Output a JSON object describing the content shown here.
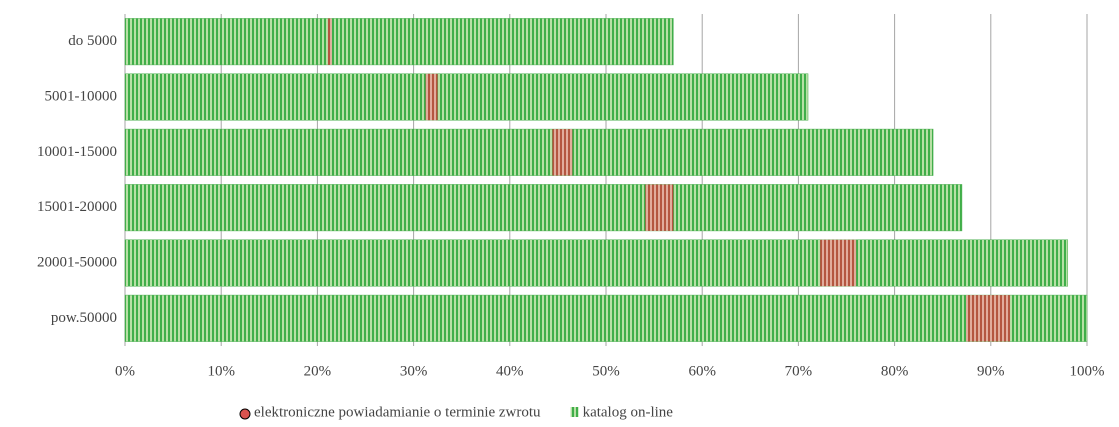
{
  "chart_data": {
    "type": "bar",
    "orientation": "horizontal",
    "categories": [
      "do 5000",
      "5001-10000",
      "10001-15000",
      "15001-20000",
      "20001-50000",
      "pow.50000"
    ],
    "series": [
      {
        "name": "katalog on-line",
        "color": "#4caf50",
        "values": [
          57,
          71,
          84,
          87,
          98,
          100
        ]
      },
      {
        "name": "elektroniczne powiadamianie o terminie zwrotu",
        "color": "#d9534f",
        "values": [
          21.5,
          32.5,
          46.5,
          57,
          76,
          92
        ]
      }
    ],
    "xlim": [
      0,
      100
    ],
    "xticks": [
      {
        "value": 0,
        "label": "0%"
      },
      {
        "value": 10,
        "label": "10%"
      },
      {
        "value": 20,
        "label": "20%"
      },
      {
        "value": 30,
        "label": "30%"
      },
      {
        "value": 40,
        "label": "40%"
      },
      {
        "value": 50,
        "label": "50%"
      },
      {
        "value": 60,
        "label": "60%"
      },
      {
        "value": 70,
        "label": "70%"
      },
      {
        "value": 80,
        "label": "80%"
      },
      {
        "value": 90,
        "label": "90%"
      },
      {
        "value": 100,
        "label": "100%"
      }
    ],
    "grid": true,
    "legend": "bottom"
  }
}
